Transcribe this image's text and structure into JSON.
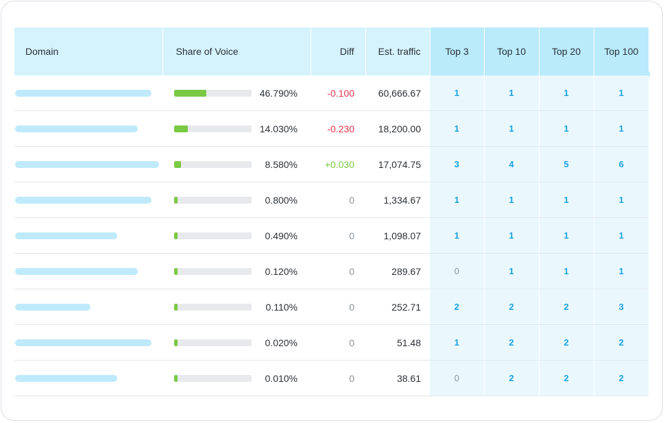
{
  "table": {
    "headers": {
      "domain": "Domain",
      "sov": "Share of Voice",
      "diff": "Diff",
      "traffic": "Est. traffic",
      "top3": "Top 3",
      "top10": "Top 10",
      "top20": "Top 20",
      "top100": "Top 100"
    },
    "rows": [
      {
        "domain_fill": 0.92,
        "sov_fill": 0.42,
        "sov": "46.790%",
        "diff": "-0.100",
        "diff_sign": "neg",
        "traffic": "60,666.67",
        "top3": "1",
        "top10": "1",
        "top20": "1",
        "top100": "1"
      },
      {
        "domain_fill": 0.83,
        "sov_fill": 0.18,
        "sov": "14.030%",
        "diff": "-0.230",
        "diff_sign": "neg",
        "traffic": "18,200.00",
        "top3": "1",
        "top10": "1",
        "top20": "1",
        "top100": "1"
      },
      {
        "domain_fill": 0.97,
        "sov_fill": 0.09,
        "sov": "8.580%",
        "diff": "+0.030",
        "diff_sign": "pos",
        "traffic": "17,074.75",
        "top3": "3",
        "top10": "4",
        "top20": "5",
        "top100": "6"
      },
      {
        "domain_fill": 0.92,
        "sov_fill": 0.04,
        "sov": "0.800%",
        "diff": "0",
        "diff_sign": "neutral",
        "traffic": "1,334.67",
        "top3": "1",
        "top10": "1",
        "top20": "1",
        "top100": "1"
      },
      {
        "domain_fill": 0.69,
        "sov_fill": 0.04,
        "sov": "0.490%",
        "diff": "0",
        "diff_sign": "neutral",
        "traffic": "1,098.07",
        "top3": "1",
        "top10": "1",
        "top20": "1",
        "top100": "1"
      },
      {
        "domain_fill": 0.83,
        "sov_fill": 0.04,
        "sov": "0.120%",
        "diff": "0",
        "diff_sign": "neutral",
        "traffic": "289.67",
        "top3": "0",
        "top10": "1",
        "top20": "1",
        "top100": "1"
      },
      {
        "domain_fill": 0.51,
        "sov_fill": 0.04,
        "sov": "0.110%",
        "diff": "0",
        "diff_sign": "neutral",
        "traffic": "252.71",
        "top3": "2",
        "top10": "2",
        "top20": "2",
        "top100": "3"
      },
      {
        "domain_fill": 0.92,
        "sov_fill": 0.04,
        "sov": "0.020%",
        "diff": "0",
        "diff_sign": "neutral",
        "traffic": "51.48",
        "top3": "1",
        "top10": "2",
        "top20": "2",
        "top100": "2"
      },
      {
        "domain_fill": 0.69,
        "sov_fill": 0.04,
        "sov": "0.010%",
        "diff": "0",
        "diff_sign": "neutral",
        "traffic": "38.61",
        "top3": "0",
        "top10": "2",
        "top20": "2",
        "top100": "2"
      }
    ]
  },
  "colors": {
    "header_bg": "#d5f3fd",
    "rank_header_bg": "#b9ebfb",
    "rank_cell_bg": "#eaf8fe",
    "domain_bar": "#bfeafb",
    "sov_fill": "#7ac943",
    "negative": "#e5334b",
    "positive": "#7ac943",
    "rank_text": "#1aa1e0"
  }
}
